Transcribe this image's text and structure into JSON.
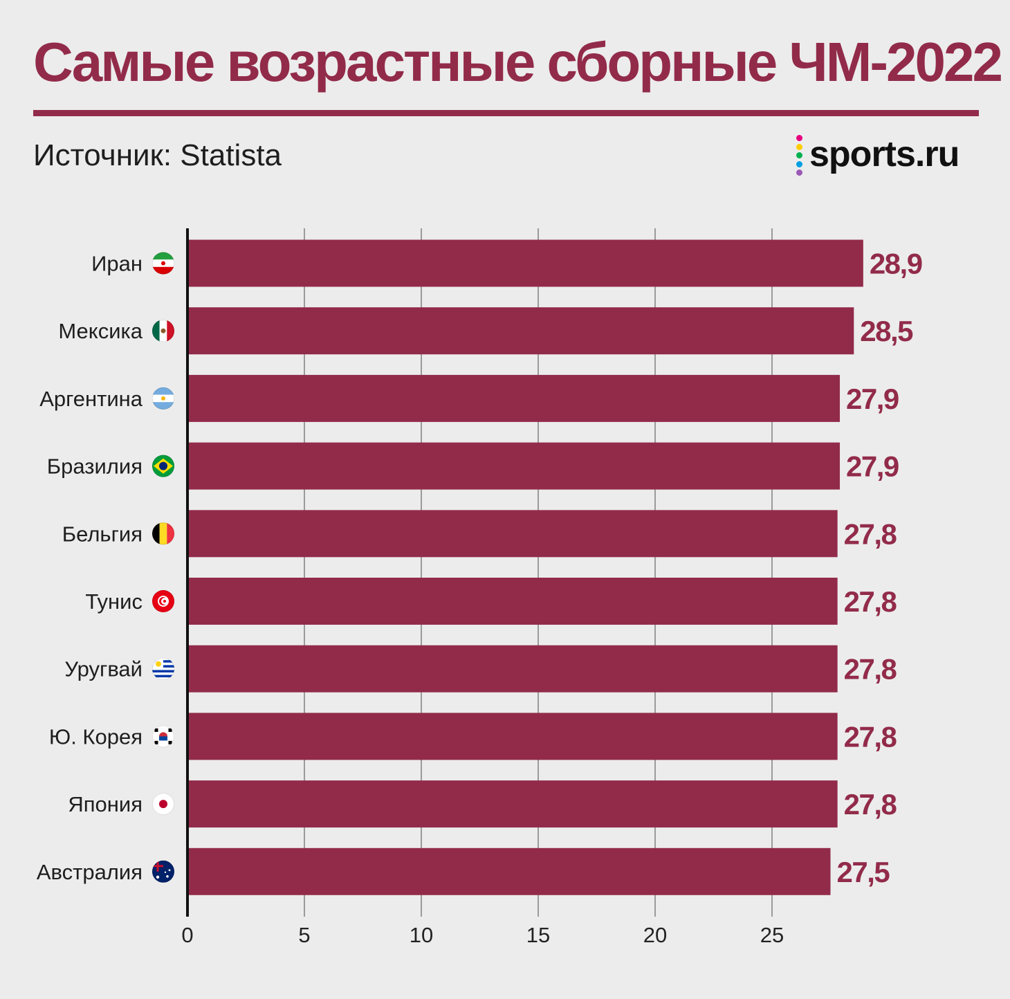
{
  "title": "Самые возрастные сборные ЧМ-2022",
  "source": "Источник: Statista",
  "logo": {
    "text": "sports.ru",
    "dot_colors": [
      "#e6007e",
      "#ffcc00",
      "#00b050",
      "#00a0e3",
      "#9b59b6"
    ]
  },
  "colors": {
    "bar": "#922b4a",
    "value_label": "#922b4a",
    "axis": "#111111",
    "grid": "#9a9a9a"
  },
  "chart_data": {
    "type": "bar",
    "orientation": "horizontal",
    "categories": [
      "Иран",
      "Мексика",
      "Аргентина",
      "Бразилия",
      "Бельгия",
      "Тунис",
      "Уругвай",
      "Ю. Корея",
      "Япония",
      "Австралия"
    ],
    "flag_icons": [
      "iran-flag-icon",
      "mexico-flag-icon",
      "argentina-flag-icon",
      "brazil-flag-icon",
      "belgium-flag-icon",
      "tunisia-flag-icon",
      "uruguay-flag-icon",
      "south-korea-flag-icon",
      "japan-flag-icon",
      "australia-flag-icon"
    ],
    "values": [
      28.9,
      28.5,
      27.9,
      27.9,
      27.8,
      27.8,
      27.8,
      27.8,
      27.8,
      27.5
    ],
    "value_labels": [
      "28,9",
      "28,5",
      "27,9",
      "27,9",
      "27,8",
      "27,8",
      "27,8",
      "27,8",
      "27,8",
      "27,5"
    ],
    "xlim": [
      0,
      30
    ],
    "x_ticks": [
      0,
      5,
      10,
      15,
      20,
      25
    ],
    "x_tick_labels": [
      "0",
      "5",
      "10",
      "15",
      "20",
      "25"
    ],
    "grid": true,
    "legend": "none"
  }
}
